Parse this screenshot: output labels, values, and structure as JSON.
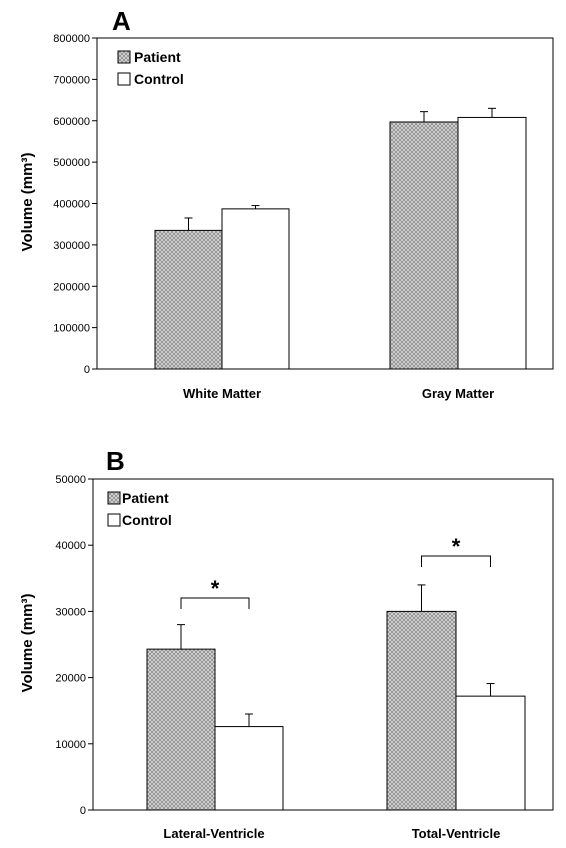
{
  "colors": {
    "patient": "#c8c8c8",
    "control": "#ffffff",
    "ink": "#000000"
  },
  "chart_data": [
    {
      "type": "bar",
      "panel": "A",
      "ylabel": "Volume (mm³)",
      "ylim": [
        0,
        800000
      ],
      "yticks": [
        "0",
        "100000",
        "200000",
        "300000",
        "400000",
        "500000",
        "600000",
        "700000",
        "800000"
      ],
      "categories": [
        "White Matter",
        "Gray Matter"
      ],
      "legend": "top-left",
      "series": [
        {
          "name": "Patient",
          "pattern": "crosshatch",
          "values": [
            335000,
            597000
          ],
          "errors": [
            30000,
            25000
          ]
        },
        {
          "name": "Control",
          "pattern": "none",
          "values": [
            387000,
            608000
          ],
          "errors": [
            8000,
            22000
          ]
        }
      ],
      "significance": []
    },
    {
      "type": "bar",
      "panel": "B",
      "ylabel": "Volume (mm³)",
      "ylim": [
        0,
        50000
      ],
      "yticks": [
        "0",
        "10000",
        "20000",
        "30000",
        "40000",
        "50000"
      ],
      "categories": [
        "Lateral-Ventricle",
        "Total-Ventricle"
      ],
      "legend": "top-left",
      "series": [
        {
          "name": "Patient",
          "pattern": "crosshatch",
          "values": [
            24300,
            30000
          ],
          "errors": [
            3700,
            4000
          ]
        },
        {
          "name": "Control",
          "pattern": "none",
          "values": [
            12600,
            17200
          ],
          "errors": [
            1900,
            1900
          ]
        }
      ],
      "significance": [
        {
          "category_index": 0,
          "symbol": "*"
        },
        {
          "category_index": 1,
          "symbol": "*"
        }
      ]
    }
  ]
}
